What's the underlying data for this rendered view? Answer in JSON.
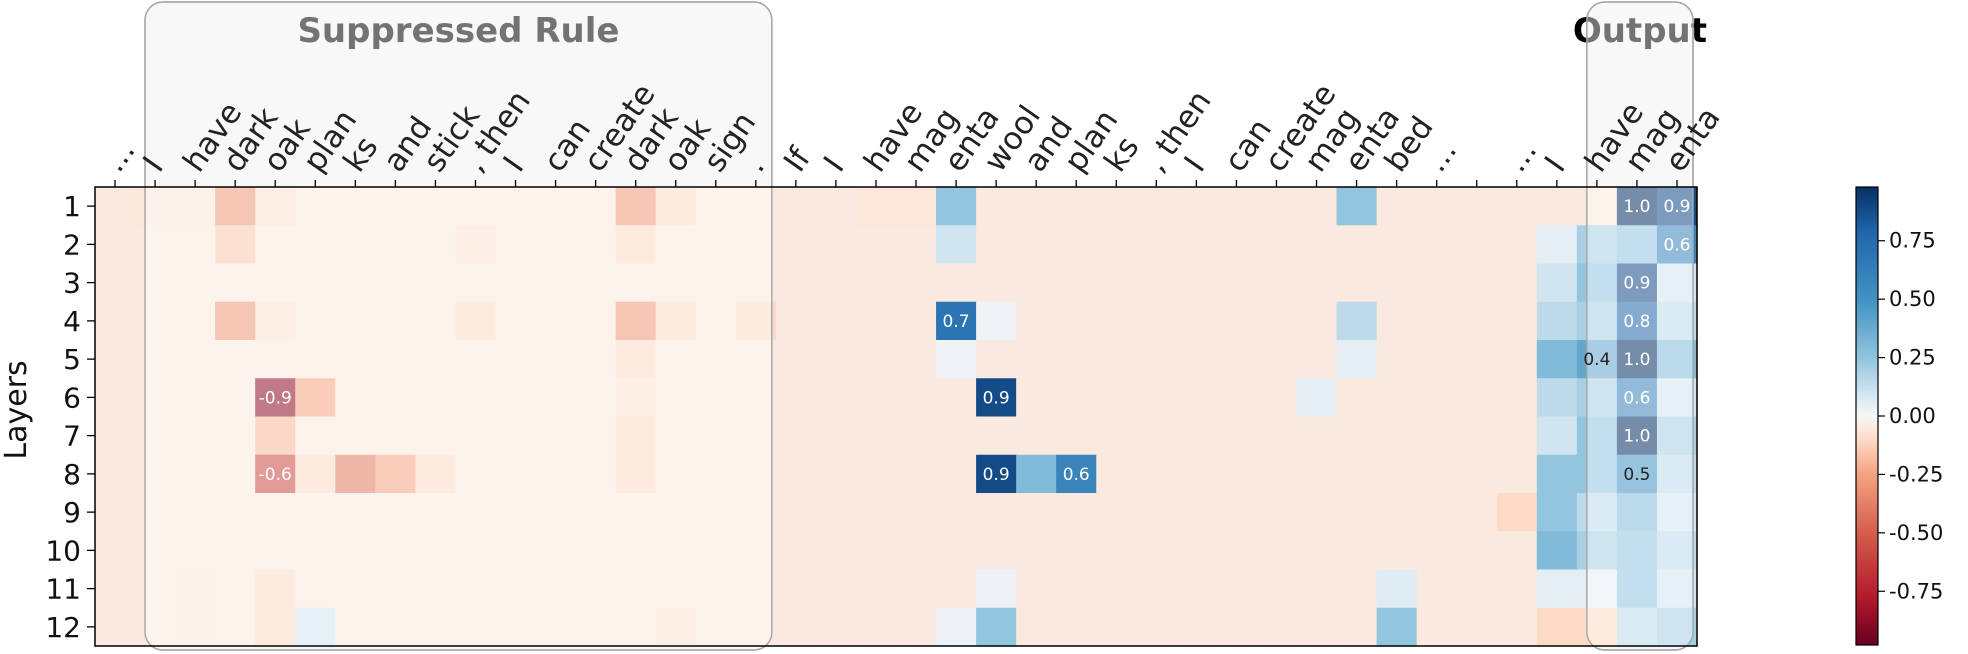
{
  "chart_data": {
    "type": "heatmap",
    "ylabel": "Layers",
    "groups": [
      {
        "label": "Suppressed Rule",
        "from": 1,
        "to": 17
      },
      {
        "label": "Output",
        "from": 37,
        "to": 40
      }
    ],
    "tokens": [
      "...",
      "I",
      "have",
      "dark",
      "oak",
      "plan",
      "ks",
      "and",
      "stick",
      ", then",
      "I",
      "can",
      "create",
      "dark",
      "oak",
      "sign",
      ".",
      "If",
      "I",
      "have",
      "mag",
      "enta",
      "wool",
      "and",
      "plan",
      "ks",
      ", then",
      "I",
      "can",
      "create",
      "mag",
      "enta",
      "bed",
      "...",
      "",
      "...",
      "I",
      "have",
      "mag",
      "enta"
    ],
    "layers": [
      "1",
      "2",
      "3",
      "4",
      "5",
      "6",
      "7",
      "8",
      "9",
      "10",
      "11",
      "12"
    ],
    "values": [
      [
        -0.05,
        -0.06,
        -0.06,
        -0.3,
        -0.08,
        -0.05,
        -0.05,
        -0.05,
        -0.05,
        -0.05,
        -0.05,
        -0.05,
        -0.05,
        -0.3,
        -0.1,
        -0.05,
        -0.05,
        -0.05,
        -0.05,
        -0.06,
        -0.06,
        0.25,
        -0.05,
        -0.05,
        -0.05,
        -0.05,
        -0.05,
        -0.05,
        -0.05,
        -0.05,
        -0.05,
        0.25,
        -0.05,
        -0.05,
        -0.05,
        -0.05,
        -0.05,
        -0.05,
        1.0,
        0.9
      ],
      [
        -0.05,
        -0.05,
        -0.05,
        -0.15,
        -0.05,
        -0.05,
        -0.05,
        -0.05,
        -0.05,
        -0.08,
        -0.05,
        -0.05,
        -0.05,
        -0.1,
        -0.05,
        -0.05,
        -0.05,
        -0.05,
        -0.05,
        -0.05,
        -0.05,
        0.1,
        -0.05,
        -0.05,
        -0.05,
        -0.05,
        -0.05,
        -0.05,
        -0.05,
        -0.05,
        -0.05,
        -0.05,
        -0.05,
        -0.05,
        -0.05,
        -0.05,
        0.05,
        0.2,
        0.25,
        0.6
      ],
      [
        -0.05,
        -0.05,
        -0.05,
        -0.05,
        -0.05,
        -0.05,
        -0.05,
        -0.05,
        -0.05,
        -0.05,
        -0.05,
        -0.05,
        -0.05,
        -0.05,
        -0.05,
        -0.05,
        -0.05,
        -0.05,
        -0.05,
        -0.05,
        -0.05,
        -0.05,
        -0.05,
        -0.05,
        -0.05,
        -0.05,
        -0.05,
        -0.05,
        -0.05,
        -0.05,
        -0.05,
        -0.05,
        -0.05,
        -0.05,
        -0.05,
        -0.05,
        0.1,
        0.25,
        0.9,
        0.1
      ],
      [
        -0.05,
        -0.05,
        -0.05,
        -0.3,
        -0.08,
        -0.05,
        -0.05,
        -0.05,
        -0.05,
        -0.1,
        -0.05,
        -0.05,
        -0.05,
        -0.3,
        -0.1,
        -0.05,
        -0.1,
        -0.05,
        -0.05,
        -0.05,
        -0.05,
        0.7,
        0.02,
        -0.05,
        -0.05,
        -0.05,
        -0.05,
        -0.05,
        -0.05,
        -0.05,
        -0.05,
        0.15,
        -0.05,
        -0.05,
        -0.05,
        -0.05,
        0.15,
        0.2,
        0.8,
        0.15
      ],
      [
        -0.05,
        -0.05,
        -0.05,
        -0.05,
        -0.05,
        -0.05,
        -0.05,
        -0.05,
        -0.05,
        -0.05,
        -0.05,
        -0.05,
        -0.05,
        -0.1,
        -0.05,
        -0.05,
        -0.05,
        -0.05,
        -0.05,
        -0.05,
        -0.05,
        0.02,
        -0.05,
        -0.05,
        -0.05,
        -0.05,
        -0.05,
        -0.05,
        -0.05,
        -0.05,
        -0.05,
        0.05,
        -0.05,
        -0.05,
        -0.05,
        -0.05,
        0.3,
        0.4,
        1.0,
        0.3
      ],
      [
        -0.05,
        -0.05,
        -0.05,
        -0.05,
        -0.9,
        -0.25,
        -0.05,
        -0.05,
        -0.05,
        -0.05,
        -0.05,
        -0.05,
        -0.05,
        -0.08,
        -0.05,
        -0.05,
        -0.05,
        -0.05,
        -0.05,
        -0.05,
        -0.05,
        -0.05,
        0.9,
        -0.05,
        -0.05,
        -0.05,
        -0.05,
        -0.05,
        -0.05,
        -0.05,
        0.05,
        -0.05,
        -0.05,
        -0.05,
        -0.05,
        -0.05,
        0.15,
        0.2,
        0.6,
        0.1
      ],
      [
        -0.05,
        -0.05,
        -0.05,
        -0.05,
        -0.2,
        -0.05,
        -0.05,
        -0.05,
        -0.05,
        -0.05,
        -0.05,
        -0.05,
        -0.05,
        -0.1,
        -0.05,
        -0.05,
        -0.05,
        -0.05,
        -0.05,
        -0.05,
        -0.05,
        -0.05,
        -0.05,
        -0.05,
        -0.05,
        -0.05,
        -0.05,
        -0.05,
        -0.05,
        -0.05,
        -0.05,
        -0.05,
        -0.05,
        -0.05,
        -0.05,
        -0.05,
        0.1,
        0.25,
        1.0,
        0.2
      ],
      [
        -0.05,
        -0.05,
        -0.05,
        -0.05,
        -0.6,
        -0.1,
        -0.4,
        -0.25,
        -0.1,
        -0.05,
        -0.05,
        -0.05,
        -0.05,
        -0.1,
        -0.05,
        -0.05,
        -0.05,
        -0.05,
        -0.05,
        -0.05,
        -0.05,
        -0.05,
        0.9,
        0.3,
        0.6,
        -0.05,
        -0.05,
        -0.05,
        -0.05,
        -0.05,
        -0.05,
        -0.05,
        -0.05,
        -0.05,
        -0.05,
        -0.05,
        0.25,
        0.25,
        0.5,
        0.15
      ],
      [
        -0.05,
        -0.05,
        -0.05,
        -0.05,
        -0.05,
        -0.05,
        -0.05,
        -0.05,
        -0.05,
        -0.05,
        -0.05,
        -0.05,
        -0.05,
        -0.05,
        -0.05,
        -0.05,
        -0.05,
        -0.05,
        -0.05,
        -0.05,
        -0.05,
        -0.05,
        -0.05,
        -0.05,
        -0.05,
        -0.05,
        -0.05,
        -0.05,
        -0.05,
        -0.05,
        -0.05,
        -0.05,
        -0.05,
        -0.05,
        -0.05,
        -0.1,
        0.25,
        0.15,
        0.3,
        0.1
      ],
      [
        -0.05,
        -0.05,
        -0.05,
        -0.05,
        -0.05,
        -0.05,
        -0.05,
        -0.05,
        -0.05,
        -0.05,
        -0.05,
        -0.05,
        -0.05,
        -0.05,
        -0.05,
        -0.05,
        -0.05,
        -0.05,
        -0.05,
        -0.05,
        -0.05,
        -0.05,
        -0.05,
        -0.05,
        -0.05,
        -0.05,
        -0.05,
        -0.05,
        -0.05,
        -0.05,
        -0.05,
        -0.05,
        -0.05,
        -0.05,
        -0.05,
        -0.05,
        0.3,
        0.2,
        0.25,
        0.15
      ],
      [
        -0.05,
        -0.05,
        -0.06,
        -0.05,
        -0.1,
        -0.05,
        -0.05,
        -0.05,
        -0.05,
        -0.05,
        -0.05,
        -0.05,
        -0.05,
        -0.05,
        -0.05,
        -0.05,
        -0.05,
        -0.05,
        -0.05,
        -0.05,
        -0.05,
        -0.05,
        0.03,
        -0.05,
        -0.05,
        -0.05,
        -0.05,
        -0.05,
        -0.05,
        -0.05,
        -0.05,
        -0.05,
        0.06,
        -0.05,
        -0.05,
        -0.05,
        0.05,
        0.05,
        0.25,
        0.1
      ],
      [
        -0.05,
        -0.05,
        -0.06,
        -0.05,
        -0.1,
        0.1,
        -0.05,
        -0.05,
        -0.05,
        -0.05,
        -0.05,
        -0.05,
        -0.05,
        -0.05,
        -0.08,
        -0.05,
        -0.05,
        -0.05,
        -0.05,
        -0.05,
        -0.05,
        0.03,
        0.25,
        -0.05,
        -0.05,
        -0.05,
        -0.05,
        -0.05,
        -0.05,
        -0.05,
        -0.05,
        -0.05,
        0.25,
        -0.05,
        -0.05,
        -0.05,
        -0.1,
        -0.1,
        0.15,
        0.2
      ]
    ],
    "annotations": [
      {
        "layer": 1,
        "col": 38,
        "text": "1.0"
      },
      {
        "layer": 1,
        "col": 39,
        "text": "0.9"
      },
      {
        "layer": 2,
        "col": 39,
        "text": "0.6"
      },
      {
        "layer": 3,
        "col": 38,
        "text": "0.9"
      },
      {
        "layer": 4,
        "col": 21,
        "text": "0.7"
      },
      {
        "layer": 4,
        "col": 38,
        "text": "0.8"
      },
      {
        "layer": 5,
        "col": 37,
        "text": "0.4"
      },
      {
        "layer": 5,
        "col": 38,
        "text": "1.0"
      },
      {
        "layer": 6,
        "col": 4,
        "text": "-0.9"
      },
      {
        "layer": 6,
        "col": 22,
        "text": "0.9"
      },
      {
        "layer": 6,
        "col": 38,
        "text": "0.6"
      },
      {
        "layer": 7,
        "col": 38,
        "text": "1.0"
      },
      {
        "layer": 8,
        "col": 4,
        "text": "-0.6"
      },
      {
        "layer": 8,
        "col": 22,
        "text": "0.9"
      },
      {
        "layer": 8,
        "col": 24,
        "text": "0.6"
      },
      {
        "layer": 8,
        "col": 38,
        "text": "0.5"
      }
    ],
    "colorbar": {
      "colormap": "RdBu",
      "vmin": -0.98,
      "vmax": 0.98,
      "ticks": [
        "0.75",
        "0.50",
        "0.25",
        "0.00",
        "-0.25",
        "-0.50",
        "-0.75"
      ],
      "tick_values": [
        0.75,
        0.5,
        0.25,
        0.0,
        -0.25,
        -0.5,
        -0.75
      ]
    }
  }
}
